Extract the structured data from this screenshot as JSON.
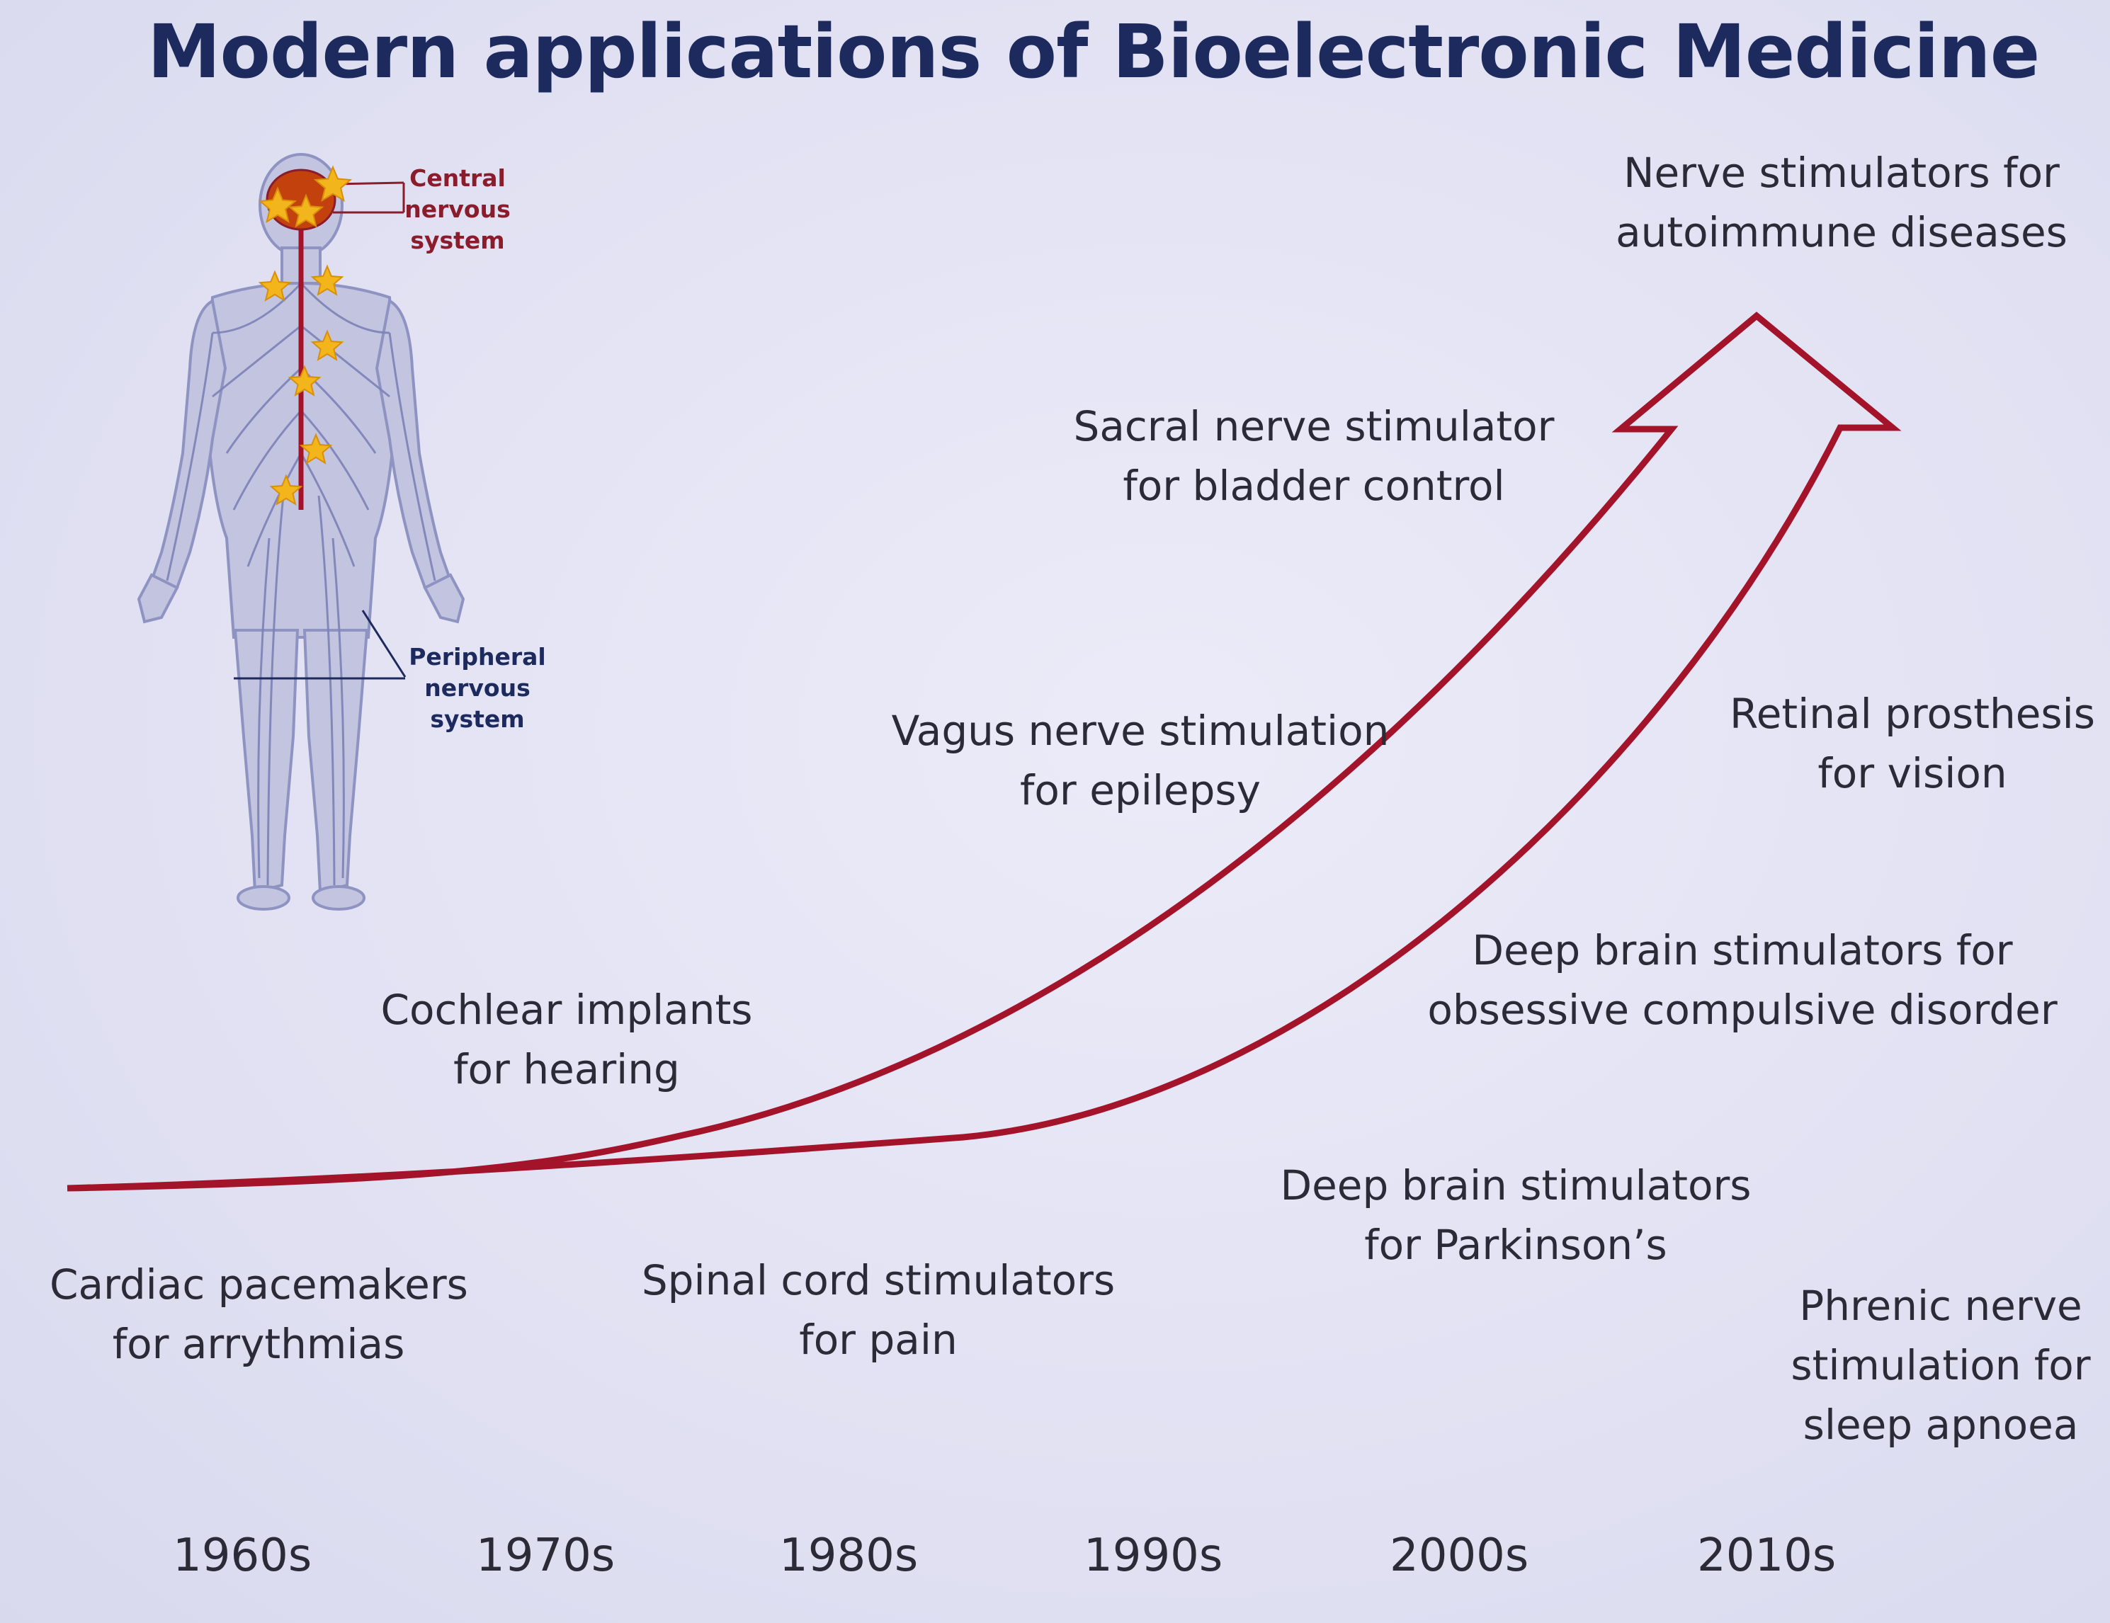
{
  "title": "Modern applications of Bioelectronic Medicine",
  "body_labels": {
    "central": [
      "Central",
      "nervous",
      "system"
    ],
    "peripheral": [
      "Peripheral",
      "nervous",
      "system"
    ]
  },
  "applications": {
    "cardiac": [
      "Cardiac pacemakers",
      "for arrythmias"
    ],
    "cochlear": [
      "Cochlear implants",
      "for hearing"
    ],
    "spinal": [
      "Spinal cord stimulators",
      "for pain"
    ],
    "vagus": [
      "Vagus nerve stimulation",
      "for epilepsy"
    ],
    "sacral": [
      "Sacral nerve stimulator",
      "for bladder control"
    ],
    "dbs_parkinsons": [
      "Deep brain stimulators",
      "for Parkinson’s"
    ],
    "dbs_ocd": [
      "Deep brain stimulators for",
      "obsessive compulsive disorder"
    ],
    "retinal": [
      "Retinal prosthesis",
      "for vision"
    ],
    "phrenic": [
      "Phrenic nerve",
      "stimulation for",
      "sleep apnoea"
    ],
    "autoimmune": [
      "Nerve stimulators for",
      "autoimmune diseases"
    ]
  },
  "decades": [
    "1960s",
    "1970s",
    "1980s",
    "1990s",
    "2000s",
    "2010s"
  ],
  "colors": {
    "title": "#1d2a5e",
    "arrow": "#a3132a",
    "central_label": "#8a1c2c",
    "peripheral_label": "#1d2a5e",
    "star": "#f2b51c",
    "brain": "#c2410c",
    "body": "#b9bad8"
  }
}
